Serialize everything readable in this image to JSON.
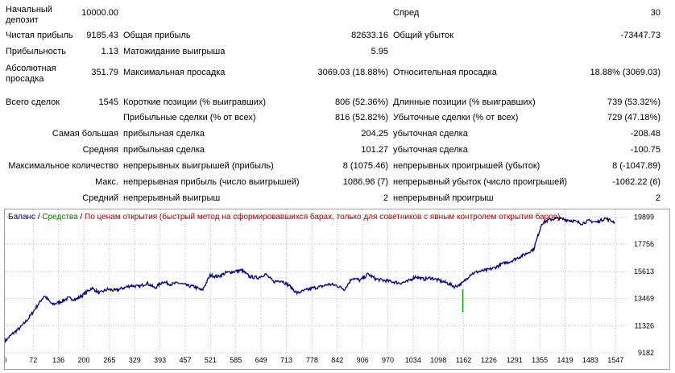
{
  "report": {
    "row1": {
      "label": "Начальный депозит",
      "value": "10000.00",
      "c3_label": "Спред",
      "c3_value": "30"
    },
    "row2": {
      "label": "Чистая прибыль",
      "value": "9185.43",
      "c2_label": "Общая прибыль",
      "c2_value": "82633.16",
      "c3_label": "Общий убыток",
      "c3_value": "-73447.73"
    },
    "row3": {
      "label": "Прибыльность",
      "value": "1.13",
      "c2_label": "Матожидание выигрыша",
      "c2_value": "5.95"
    },
    "row4": {
      "label": "Абсолютная просадка",
      "value": "351.79",
      "c2_label": "Максимальная просадка",
      "c2_value": "3069.03 (18.88%)",
      "c3_label": "Относительная просадка",
      "c3_value": "18.88% (3069.03)"
    },
    "row5": {
      "label": "Всего сделок",
      "value": "1545",
      "c2_label": "Короткие позиции (% выигравших)",
      "c2_value": "806 (52.36%)",
      "c3_label": "Длинные позиции (% выигравших)",
      "c3_value": "739 (53.32%)"
    },
    "row6": {
      "c2_label": "Прибыльные сделки (% от всех)",
      "c2_value": "816 (52.82%)",
      "c3_label": "Убыточные сделки (% от всех)",
      "c3_value": "729 (47.18%)"
    },
    "row7": {
      "label": "Самая большая",
      "c2_label": "прибыльная сделка",
      "c2_value": "204.25",
      "c3_label": "убыточная сделка",
      "c3_value": "-208.48"
    },
    "row8": {
      "label": "Средняя",
      "c2_label": "прибыльная сделка",
      "c2_value": "101.27",
      "c3_label": "убыточная сделка",
      "c3_value": "-100.75"
    },
    "row9": {
      "label": "Максимальное количество",
      "c2_label": "непрерывных выигрышей (прибыль)",
      "c2_value": "8 (1075.46)",
      "c3_label": "непрерывных проигрышей (убыток)",
      "c3_value": "8 (-1047.89)"
    },
    "row10": {
      "label": "Макс.",
      "c2_label": "непрерывная прибыль (число выигрышей)",
      "c2_value": "1086.96 (7)",
      "c3_label": "непрерывный убыток (число проигрышей)",
      "c3_value": "-1062.22 (6)"
    },
    "row11": {
      "label": "Средний",
      "c2_label": "непрерывный выигрыш",
      "c2_value": "2",
      "c3_label": "непрерывный проигрыш",
      "c3_value": "2"
    }
  },
  "legend": {
    "balance": "Баланс",
    "sep1": " / ",
    "equity": "Средства",
    "sep2": " / ",
    "note": "По ценам открытия (быстрый метод на сформировавшихся барах, только для советников с явным контролем открытия баров)"
  },
  "colors": {
    "balance": "#000080",
    "equity": "#00a000",
    "note": "#b00000",
    "grid": "#c0c0c0"
  },
  "chart_data": {
    "type": "line",
    "title": "",
    "xlabel": "",
    "ylabel": "",
    "xlim": [
      0,
      1575
    ],
    "ylim": [
      9182,
      20500
    ],
    "x_ticks": [
      "0",
      "72",
      "136",
      "200",
      "265",
      "329",
      "393",
      "457",
      "521",
      "585",
      "649",
      "713",
      "778",
      "842",
      "906",
      "970",
      "1034",
      "1098",
      "1162",
      "1226",
      "1291",
      "1355",
      "1419",
      "1483",
      "1547"
    ],
    "y_ticks": [
      "9182",
      "11326",
      "13469",
      "15613",
      "17756",
      "19899"
    ],
    "grid": true,
    "series": [
      {
        "name": "Баланс",
        "x": [
          0,
          20,
          40,
          60,
          80,
          100,
          120,
          140,
          160,
          180,
          200,
          220,
          240,
          260,
          280,
          300,
          320,
          340,
          360,
          380,
          400,
          420,
          440,
          460,
          480,
          500,
          520,
          540,
          560,
          580,
          600,
          620,
          640,
          660,
          680,
          700,
          720,
          740,
          760,
          780,
          800,
          820,
          840,
          860,
          880,
          900,
          920,
          940,
          960,
          980,
          1000,
          1020,
          1040,
          1060,
          1080,
          1100,
          1120,
          1140,
          1160,
          1180,
          1200,
          1220,
          1240,
          1260,
          1280,
          1300,
          1320,
          1340,
          1360,
          1380,
          1400,
          1420,
          1440,
          1460,
          1480,
          1500,
          1520,
          1545
        ],
        "values": [
          10100,
          10700,
          11200,
          11900,
          12800,
          13700,
          13000,
          13200,
          13500,
          13400,
          13800,
          14300,
          13900,
          14200,
          14100,
          14300,
          14500,
          14400,
          14700,
          14300,
          14800,
          14600,
          14700,
          14500,
          14400,
          14100,
          15300,
          15200,
          15500,
          15600,
          15700,
          15200,
          15100,
          15400,
          14800,
          14900,
          14500,
          13900,
          14100,
          14300,
          14400,
          14600,
          14500,
          14200,
          15100,
          14900,
          15400,
          15000,
          14900,
          14800,
          14700,
          14800,
          15200,
          15000,
          15100,
          14900,
          14700,
          14400,
          14700,
          15400,
          15600,
          15700,
          15900,
          16200,
          16400,
          16700,
          17000,
          17400,
          19400,
          19700,
          19800,
          19700,
          19600,
          19400,
          19600,
          19500,
          19800,
          19500
        ]
      },
      {
        "name": "Средства",
        "x": [
          1160,
          1160
        ],
        "values": [
          14200,
          12400
        ]
      }
    ]
  }
}
